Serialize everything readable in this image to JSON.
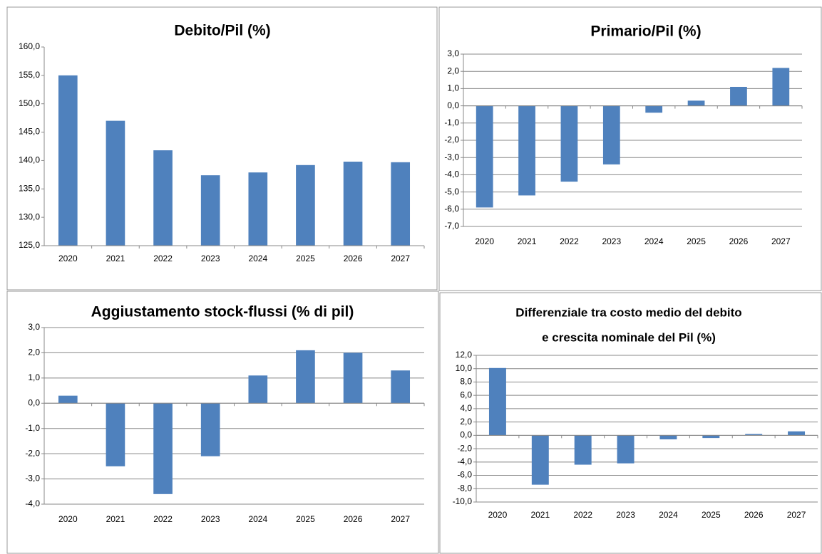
{
  "chart_data": [
    {
      "type": "bar",
      "title": [
        "Debito/Pil (%)"
      ],
      "categories": [
        "2020",
        "2021",
        "2022",
        "2023",
        "2024",
        "2025",
        "2026",
        "2027"
      ],
      "values": [
        155.0,
        147.0,
        141.8,
        137.4,
        137.9,
        139.2,
        139.8,
        139.7
      ],
      "color": "#4f81bd",
      "ylim": [
        125,
        160
      ],
      "yticks": [
        {
          "value": 125,
          "label": "125,0"
        },
        {
          "value": 130,
          "label": "130,0"
        },
        {
          "value": 135,
          "label": "135,0"
        },
        {
          "value": 140,
          "label": "140,0"
        },
        {
          "value": 145,
          "label": "145,0"
        },
        {
          "value": 150,
          "label": "150,0"
        },
        {
          "value": 155,
          "label": "155,0"
        },
        {
          "value": 160,
          "label": "160,0"
        }
      ],
      "grid": false
    },
    {
      "type": "bar",
      "title": [
        "Primario/Pil (%)"
      ],
      "categories": [
        "2020",
        "2021",
        "2022",
        "2023",
        "2024",
        "2025",
        "2026",
        "2027"
      ],
      "values": [
        -5.9,
        -5.2,
        -4.4,
        -3.4,
        -0.4,
        0.3,
        1.1,
        2.2
      ],
      "color": "#4f81bd",
      "ylim": [
        -7,
        3
      ],
      "yticks": [
        {
          "value": -7,
          "label": "-7,0"
        },
        {
          "value": -6,
          "label": "-6,0"
        },
        {
          "value": -5,
          "label": "-5,0"
        },
        {
          "value": -4,
          "label": "-4,0"
        },
        {
          "value": -3,
          "label": "-3,0"
        },
        {
          "value": -2,
          "label": "-2,0"
        },
        {
          "value": -1,
          "label": "-1,0"
        },
        {
          "value": 0,
          "label": "0,0"
        },
        {
          "value": 1,
          "label": "1,0"
        },
        {
          "value": 2,
          "label": "2,0"
        },
        {
          "value": 3,
          "label": "3,0"
        }
      ],
      "grid": true
    },
    {
      "type": "bar",
      "title": [
        "Aggiustamento stock-flussi (% di pil)"
      ],
      "categories": [
        "2020",
        "2021",
        "2022",
        "2023",
        "2024",
        "2025",
        "2026",
        "2027"
      ],
      "values": [
        0.3,
        -2.5,
        -3.6,
        -2.1,
        1.1,
        2.1,
        2.0,
        1.3
      ],
      "color": "#4f81bd",
      "ylim": [
        -4,
        3
      ],
      "yticks": [
        {
          "value": -4,
          "label": "-4,0"
        },
        {
          "value": -3,
          "label": "-3,0"
        },
        {
          "value": -2,
          "label": "-2,0"
        },
        {
          "value": -1,
          "label": "-1,0"
        },
        {
          "value": 0,
          "label": "0,0"
        },
        {
          "value": 1,
          "label": "1,0"
        },
        {
          "value": 2,
          "label": "2,0"
        },
        {
          "value": 3,
          "label": "3,0"
        }
      ],
      "grid": true
    },
    {
      "type": "bar",
      "title": [
        "Differenziale tra costo medio del debito",
        "e crescita nominale del Pil (%)"
      ],
      "categories": [
        "2020",
        "2021",
        "2022",
        "2023",
        "2024",
        "2025",
        "2026",
        "2027"
      ],
      "values": [
        10.1,
        -7.4,
        -4.4,
        -4.2,
        -0.6,
        -0.4,
        0.2,
        0.6
      ],
      "color": "#4f81bd",
      "ylim": [
        -10,
        12
      ],
      "yticks": [
        {
          "value": -10,
          "label": "-10,0"
        },
        {
          "value": -8,
          "label": "-8,0"
        },
        {
          "value": -6,
          "label": "-6,0"
        },
        {
          "value": -4,
          "label": "-4,0"
        },
        {
          "value": -2,
          "label": "-2,0"
        },
        {
          "value": 0,
          "label": "0,0"
        },
        {
          "value": 2,
          "label": "2,0"
        },
        {
          "value": 4,
          "label": "4,0"
        },
        {
          "value": 6,
          "label": "6,0"
        },
        {
          "value": 8,
          "label": "8,0"
        },
        {
          "value": 10,
          "label": "10,0"
        },
        {
          "value": 12,
          "label": "12,0"
        }
      ],
      "grid": true
    }
  ]
}
